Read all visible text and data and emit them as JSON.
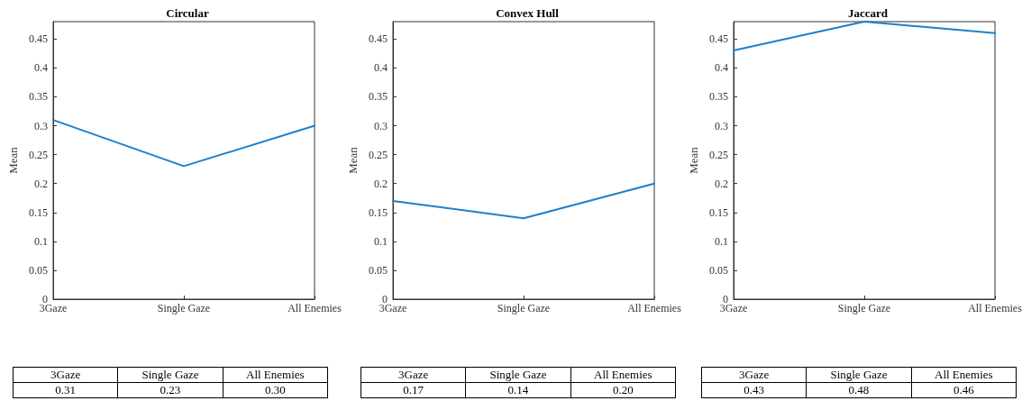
{
  "chart_data": [
    {
      "type": "line",
      "title": "Circular",
      "ylabel": "Mean",
      "categories": [
        "3Gaze",
        "Single Gaze",
        "All Enemies"
      ],
      "series": [
        {
          "color": "#1f7fc9",
          "values": [
            0.31,
            0.23,
            0.3
          ],
          "value_labels": [
            "0.31",
            "0.23",
            "0.30"
          ]
        }
      ],
      "ylim": [
        0,
        0.48
      ],
      "yticks": [
        0,
        0.05,
        0.1,
        0.15,
        0.2,
        0.25,
        0.3,
        0.35,
        0.4,
        0.45
      ],
      "marker": "none",
      "line_style": "solid"
    },
    {
      "type": "line",
      "title": "Convex Hull",
      "ylabel": "Mean",
      "categories": [
        "3Gaze",
        "Single Gaze",
        "All Enemies"
      ],
      "series": [
        {
          "color": "#1f7fc9",
          "values": [
            0.17,
            0.14,
            0.2
          ],
          "value_labels": [
            "0.17",
            "0.14",
            "0.20"
          ]
        }
      ],
      "ylim": [
        0,
        0.48
      ],
      "yticks": [
        0,
        0.05,
        0.1,
        0.15,
        0.2,
        0.25,
        0.3,
        0.35,
        0.4,
        0.45
      ],
      "marker": "none",
      "line_style": "solid"
    },
    {
      "type": "line",
      "title": "Jaccard",
      "ylabel": "Mean",
      "categories": [
        "3Gaze",
        "Single Gaze",
        "All Enemies"
      ],
      "series": [
        {
          "color": "#1f7fc9",
          "values": [
            0.43,
            0.48,
            0.46
          ],
          "value_labels": [
            "0.43",
            "0.48",
            "0.46"
          ]
        }
      ],
      "ylim": [
        0,
        0.48
      ],
      "yticks": [
        0,
        0.05,
        0.1,
        0.15,
        0.2,
        0.25,
        0.3,
        0.35,
        0.4,
        0.45
      ],
      "marker": "none",
      "line_style": "solid"
    }
  ]
}
